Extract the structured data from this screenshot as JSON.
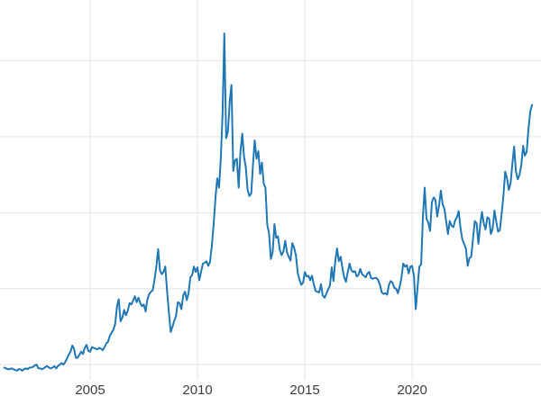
{
  "chart_data": {
    "type": "line",
    "title": "",
    "xlabel": "",
    "ylabel": "",
    "legend": "none",
    "grid": true,
    "background": "#ffffff",
    "grid_color": "#e3e3e3",
    "line_color": "#1f77b4",
    "line_width": 2,
    "xlim": [
      2000.8,
      2026.0
    ],
    "ylim": [
      3,
      53
    ],
    "x_ticks": [
      {
        "year": 2005,
        "label": "2005"
      },
      {
        "year": 2010,
        "label": "2010"
      },
      {
        "year": 2015,
        "label": "2015"
      },
      {
        "year": 2020,
        "label": "2020"
      }
    ],
    "y_gridlines": [
      5,
      15,
      25,
      35,
      45
    ],
    "x_start": 2001.0,
    "x_step": 0.0833333,
    "values": [
      4.6,
      4.5,
      4.4,
      4.4,
      4.5,
      4.4,
      4.3,
      4.2,
      4.4,
      4.4,
      4.2,
      4.4,
      4.5,
      4.4,
      4.6,
      4.6,
      4.7,
      4.9,
      5.0,
      4.5,
      4.5,
      4.4,
      4.5,
      4.7,
      4.8,
      4.6,
      4.5,
      4.6,
      4.8,
      4.5,
      4.8,
      5.0,
      5.2,
      5.0,
      5.3,
      5.8,
      6.3,
      6.7,
      7.5,
      7.1,
      5.9,
      5.9,
      6.3,
      6.7,
      6.4,
      7.2,
      7.6,
      6.8,
      6.7,
      7.3,
      7.2,
      7.1,
      7.0,
      7.2,
      7.1,
      6.9,
      7.3,
      7.8,
      8.0,
      8.8,
      9.2,
      9.6,
      10.4,
      12.7,
      13.6,
      10.7,
      11.2,
      12.2,
      11.5,
      12.1,
      13.1,
      12.9,
      13.4,
      14.0,
      13.2,
      13.8,
      13.1,
      12.7,
      12.9,
      12.0,
      13.6,
      14.3,
      14.6,
      14.8,
      16.2,
      17.9,
      20.2,
      17.4,
      16.9,
      17.2,
      17.9,
      14.7,
      11.9,
      9.3,
      10.0,
      10.8,
      11.4,
      13.2,
      13.1,
      12.3,
      14.1,
      14.6,
      13.5,
      14.4,
      16.5,
      16.8,
      17.9,
      17.2,
      17.8,
      16.1,
      17.2,
      18.3,
      18.4,
      18.6,
      18.0,
      18.5,
      20.6,
      23.4,
      26.8,
      29.5,
      28.3,
      31.9,
      37.9,
      48.6,
      34.8,
      35.7,
      39.7,
      41.8,
      30.5,
      31.9,
      32.1,
      28.3,
      33.1,
      35.4,
      32.4,
      31.0,
      28.0,
      27.2,
      27.5,
      31.4,
      34.5,
      32.1,
      33.1,
      30.1,
      31.6,
      28.8,
      28.3,
      23.4,
      22.3,
      18.9,
      19.8,
      23.5,
      21.7,
      21.9,
      20.1,
      19.4,
      19.9,
      21.3,
      19.8,
      19.2,
      18.7,
      21.0,
      20.4,
      19.4,
      17.1,
      16.2,
      15.5,
      15.8,
      17.2,
      16.6,
      16.7,
      16.1,
      16.7,
      15.6,
      14.7,
      14.6,
      14.5,
      15.6,
      14.1,
      13.8,
      14.3,
      14.9,
      15.4,
      17.8,
      16.0,
      18.6,
      20.3,
      18.6,
      19.2,
      17.7,
      16.5,
      15.9,
      17.2,
      18.3,
      17.4,
      17.2,
      17.3,
      16.6,
      16.8,
      17.6,
      16.9,
      16.7,
      16.5,
      17.0,
      17.2,
      16.4,
      16.3,
      16.4,
      16.4,
      16.1,
      15.5,
      14.5,
      14.3,
      14.4,
      14.2,
      15.5,
      16.0,
      15.8,
      15.1,
      15.0,
      14.4,
      15.3,
      16.4,
      18.3,
      17.9,
      18.1,
      17.0,
      17.9,
      18.0,
      16.7,
      12.3,
      15.2,
      17.9,
      18.2,
      24.4,
      28.3,
      24.2,
      23.7,
      22.6,
      26.4,
      27.0,
      26.7,
      24.5,
      25.9,
      27.9,
      26.1,
      25.5,
      23.9,
      22.2,
      23.9,
      23.3,
      23.1,
      24.0,
      24.4,
      25.2,
      23.0,
      21.5,
      20.9,
      20.3,
      18.0,
      19.0,
      19.2,
      21.6,
      23.9,
      23.6,
      20.9,
      23.3,
      25.1,
      23.6,
      22.8,
      24.4,
      24.2,
      22.2,
      22.9,
      25.3,
      23.8,
      22.5,
      22.7,
      24.8,
      27.2,
      30.4,
      29.5,
      28.0,
      28.9,
      31.5,
      33.7,
      30.4,
      29.4,
      30.0,
      31.3,
      33.8,
      32.5,
      33.0,
      36.0,
      38.3,
      39.2
    ]
  },
  "x_axis": {
    "tick_labels": [
      "2005",
      "2010",
      "2015",
      "2020"
    ]
  }
}
